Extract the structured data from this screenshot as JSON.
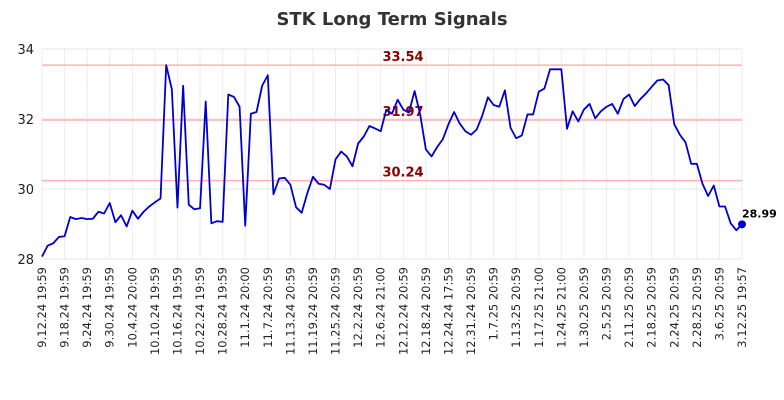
{
  "chart_data": {
    "type": "line",
    "title": "STK Long Term Signals",
    "xlabel": "",
    "ylabel": "",
    "ylim": [
      28,
      34
    ],
    "yticks": [
      28,
      30,
      32,
      34
    ],
    "grid": true,
    "colors": {
      "line": "#0000cc",
      "hline": "#ffb3b3",
      "hlabel": "#8b0000"
    },
    "x_tick_labels": [
      "9.12.24 19:59",
      "9.18.24 19:59",
      "9.24.24 19:59",
      "9.30.24 19:59",
      "10.4.24 20:00",
      "10.10.24 19:59",
      "10.16.24 19:59",
      "10.22.24 19:59",
      "10.28.24 19:59",
      "11.1.24 20:00",
      "11.7.24 20:59",
      "11.13.24 20:59",
      "11.19.24 20:59",
      "11.25.24 20:59",
      "12.2.24 20:59",
      "12.6.24 21:00",
      "12.12.24 20:59",
      "12.18.24 20:59",
      "12.24.24 17:59",
      "12.31.24 20:59",
      "1.7.25 20:59",
      "1.13.25 20:59",
      "1.17.25 21:00",
      "1.24.25 21:00",
      "1.30.25 20:59",
      "2.5.25 20:59",
      "2.11.25 20:59",
      "2.18.25 20:59",
      "2.24.25 20:59",
      "2.28.25 20:59",
      "3.6.25 20:59",
      "3.12.25 19:57"
    ],
    "horizontal_lines": [
      {
        "value": 33.54,
        "label": "33.54"
      },
      {
        "value": 31.97,
        "label": "31.97"
      },
      {
        "value": 30.24,
        "label": "30.24"
      }
    ],
    "series": [
      {
        "values": [
          28.07,
          28.38,
          28.45,
          28.63,
          28.65,
          29.2,
          29.14,
          29.17,
          29.14,
          29.15,
          29.35,
          29.3,
          29.6,
          29.05,
          29.25,
          28.93,
          29.38,
          29.15,
          29.35,
          29.5,
          29.62,
          29.73,
          33.54,
          32.85,
          29.47,
          32.95,
          29.55,
          29.42,
          29.45,
          32.5,
          29.02,
          29.08,
          29.06,
          32.7,
          32.63,
          32.35,
          28.95,
          32.15,
          32.2,
          32.95,
          33.25,
          29.85,
          30.3,
          30.32,
          30.12,
          29.48,
          29.32,
          29.88,
          30.35,
          30.15,
          30.12,
          30.0,
          30.85,
          31.07,
          30.93,
          30.65,
          31.3,
          31.5,
          31.8,
          31.73,
          31.65,
          32.27,
          32.15,
          32.55,
          32.27,
          32.18,
          32.8,
          32.12,
          31.13,
          30.93,
          31.2,
          31.42,
          31.85,
          32.2,
          31.87,
          31.65,
          31.55,
          31.7,
          32.1,
          32.62,
          32.4,
          32.35,
          32.82,
          31.75,
          31.45,
          31.53,
          32.13,
          32.13,
          32.78,
          32.87,
          33.42,
          33.42,
          33.42,
          31.72,
          32.22,
          31.93,
          32.27,
          32.43,
          32.02,
          32.22,
          32.35,
          32.43,
          32.15,
          32.57,
          32.7,
          32.37,
          32.57,
          32.73,
          32.92,
          33.1,
          33.13,
          32.97,
          31.85,
          31.55,
          31.33,
          30.72,
          30.72,
          30.15,
          29.8,
          30.1,
          29.5,
          29.5,
          29.02,
          28.82,
          28.99
        ]
      }
    ],
    "last_value": {
      "value": 28.99,
      "label": "28.99"
    }
  }
}
